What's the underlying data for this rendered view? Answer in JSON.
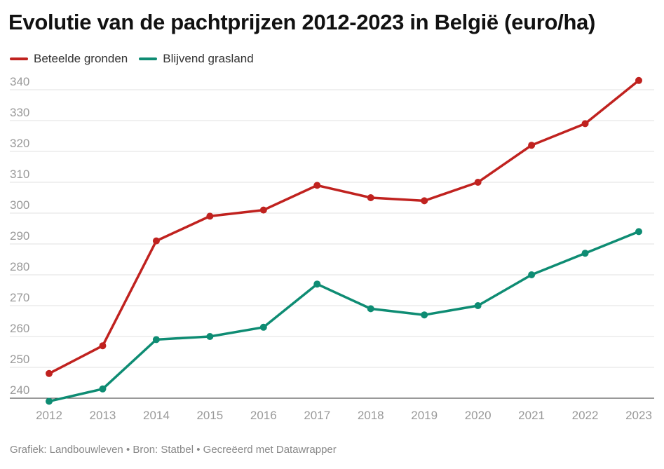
{
  "title": "Evolutie van de pachtprijzen 2012-2023 in België (euro/ha)",
  "footer": "Grafiek: Landbouwleven • Bron: Statbel • Gecreëerd met Datawrapper",
  "colors": {
    "series_1": "#c0221f",
    "series_2": "#0e8c73",
    "grid": "#e2e2e2",
    "tick": "#999999"
  },
  "chart_data": {
    "type": "line",
    "title": "Evolutie van de pachtprijzen 2012-2023 in België (euro/ha)",
    "xlabel": "",
    "ylabel": "",
    "x": [
      "2012",
      "2013",
      "2014",
      "2015",
      "2016",
      "2017",
      "2018",
      "2019",
      "2020",
      "2021",
      "2022",
      "2023"
    ],
    "ylim": [
      240,
      345
    ],
    "yticks": [
      240,
      250,
      260,
      270,
      280,
      290,
      300,
      310,
      320,
      330,
      340
    ],
    "grid": true,
    "legend": "top-left",
    "series": [
      {
        "name": "Beteelde gronden",
        "color": "#c0221f",
        "values": [
          248,
          257,
          291,
          299,
          301,
          309,
          305,
          304,
          310,
          322,
          329,
          343
        ]
      },
      {
        "name": "Blijvend grasland",
        "color": "#0e8c73",
        "values": [
          239,
          243,
          259,
          260,
          263,
          277,
          269,
          267,
          270,
          280,
          287,
          294
        ]
      }
    ]
  }
}
